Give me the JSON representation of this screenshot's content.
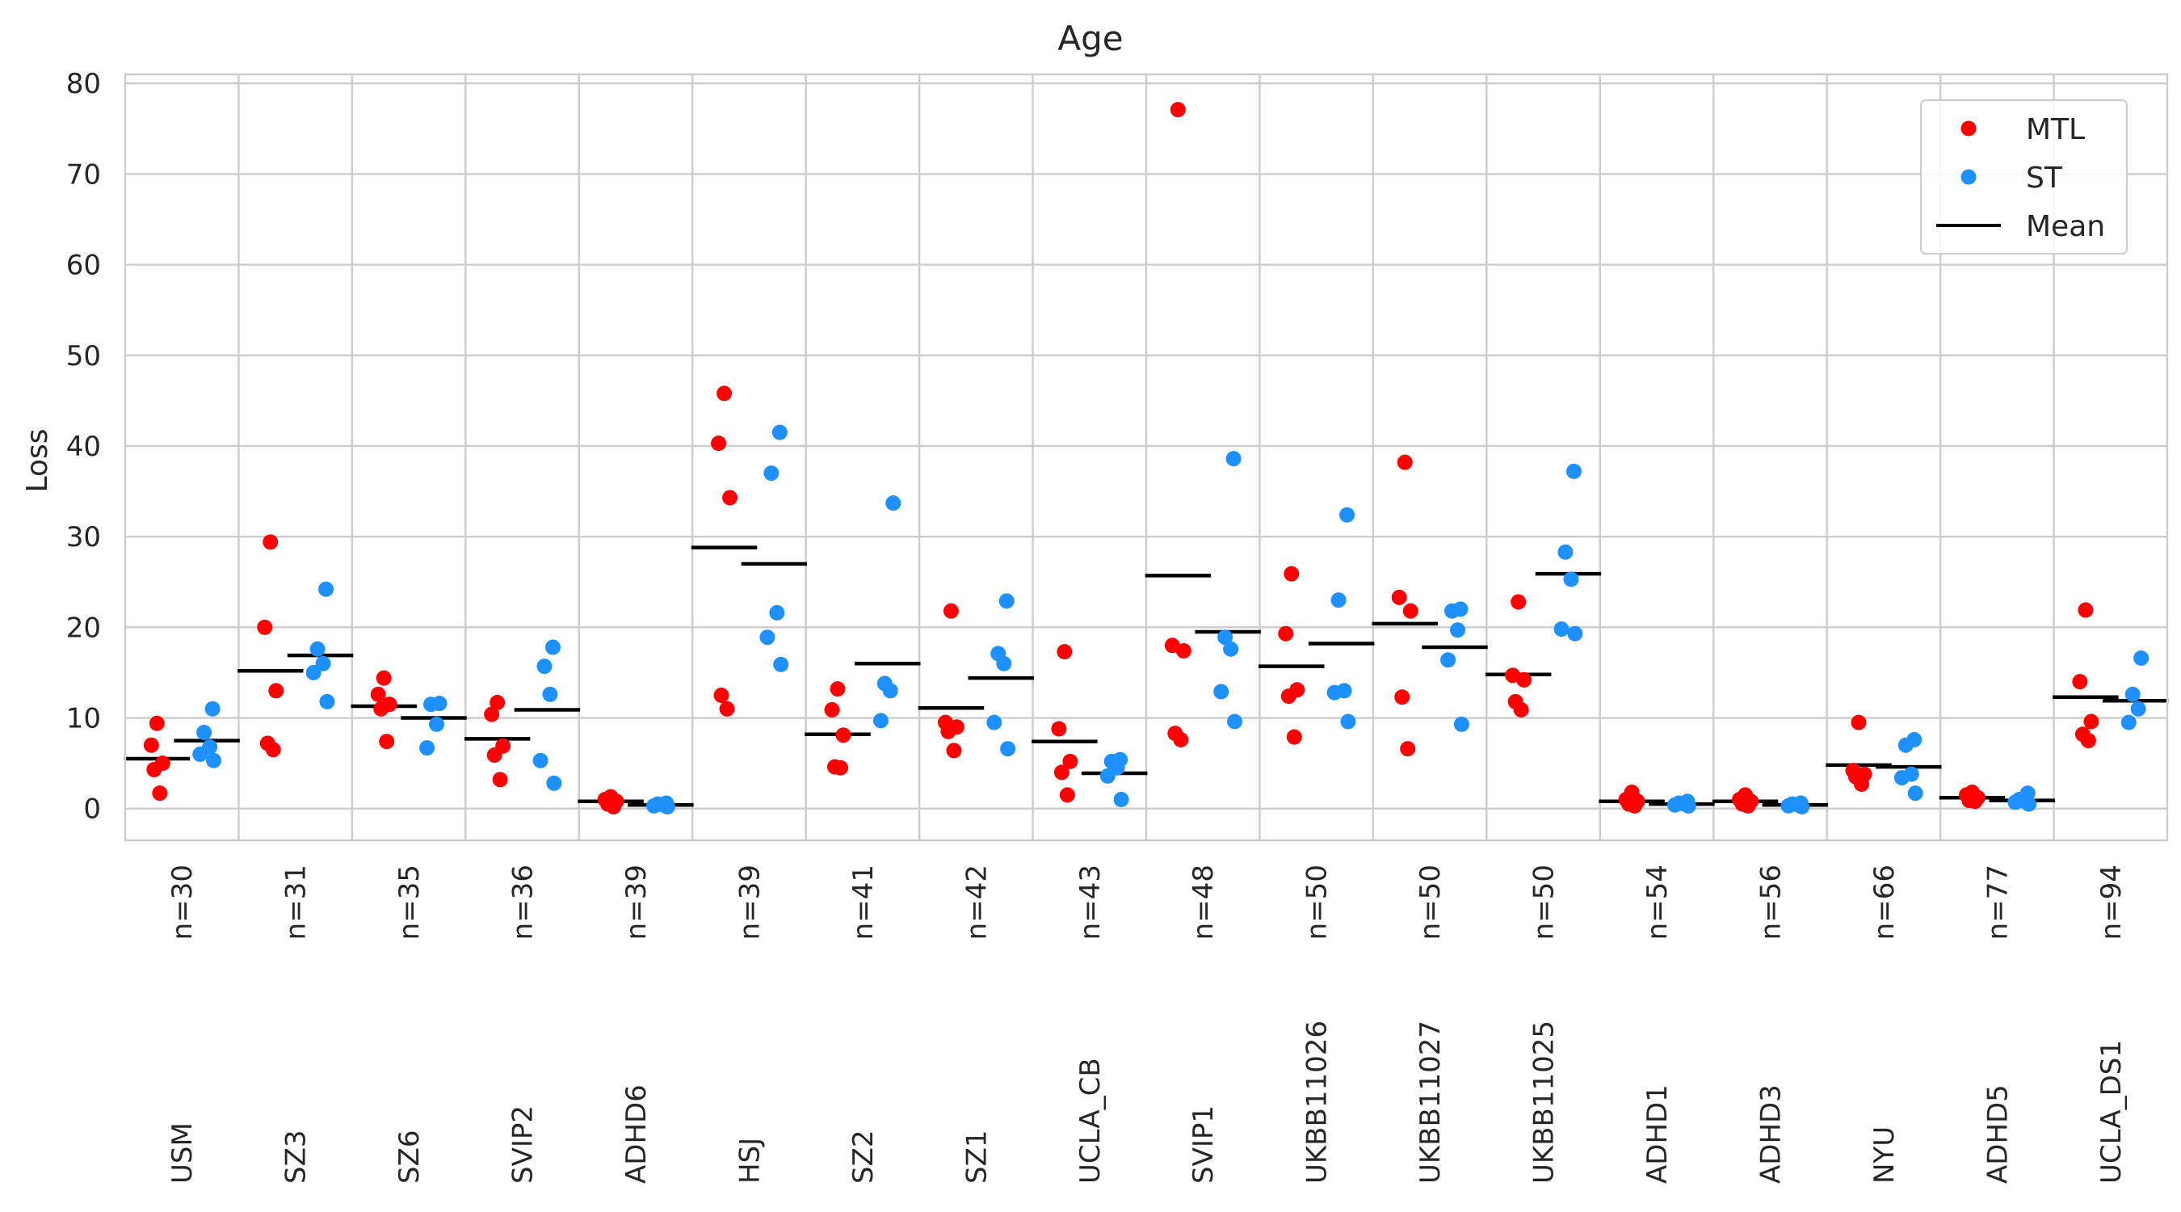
{
  "chart_data": {
    "type": "scatter",
    "title": "Age",
    "ylabel": "Loss",
    "xlabel": "",
    "ylim": [
      -3.5,
      81
    ],
    "yticks": [
      0,
      10,
      20,
      30,
      40,
      50,
      60,
      70,
      80
    ],
    "grid": true,
    "legend": {
      "placement": "top-right",
      "entries": [
        {
          "label": "MTL",
          "kind": "dot",
          "color": "#ff0000"
        },
        {
          "label": "ST",
          "kind": "dot",
          "color": "#1e90ff"
        },
        {
          "label": "Mean",
          "kind": "line",
          "color": "#000000"
        }
      ]
    },
    "colors": {
      "MTL": "#ff0000",
      "ST": "#1e90ff",
      "Mean": "#000000"
    },
    "categories": [
      {
        "name": "USM",
        "n_label": "n=30",
        "MTL": [
          9.4,
          7.0,
          5.0,
          4.3,
          1.7
        ],
        "MTL_mean": 5.5,
        "ST": [
          11.0,
          8.4,
          6.8,
          6.0,
          5.3
        ],
        "ST_mean": 7.5
      },
      {
        "name": "SZ3",
        "n_label": "n=31",
        "MTL": [
          29.4,
          20.0,
          13.0,
          7.2,
          6.5
        ],
        "MTL_mean": 15.2,
        "ST": [
          24.2,
          17.6,
          16.0,
          15.0,
          11.8
        ],
        "ST_mean": 16.9
      },
      {
        "name": "SZ6",
        "n_label": "n=35",
        "MTL": [
          14.4,
          12.6,
          11.5,
          11.0,
          7.4
        ],
        "MTL_mean": 11.3,
        "ST": [
          11.6,
          11.5,
          9.3,
          6.7
        ],
        "ST_mean": 10.0
      },
      {
        "name": "SVIP2",
        "n_label": "n=36",
        "MTL": [
          11.7,
          10.4,
          6.9,
          5.9,
          3.2
        ],
        "MTL_mean": 7.7,
        "ST": [
          17.8,
          15.7,
          12.6,
          5.3,
          2.8
        ],
        "ST_mean": 10.9
      },
      {
        "name": "ADHD6",
        "n_label": "n=39",
        "MTL": [
          1.3,
          1.0,
          0.8,
          0.5,
          0.2
        ],
        "MTL_mean": 0.8,
        "ST": [
          0.6,
          0.5,
          0.4,
          0.3,
          0.2
        ],
        "ST_mean": 0.4
      },
      {
        "name": "HSJ",
        "n_label": "n=39",
        "MTL": [
          45.8,
          40.3,
          34.3,
          12.5,
          11.0
        ],
        "MTL_mean": 28.8,
        "ST": [
          41.5,
          37.0,
          21.6,
          18.9,
          15.9
        ],
        "ST_mean": 27.0
      },
      {
        "name": "SZ2",
        "n_label": "n=41",
        "MTL": [
          13.2,
          10.9,
          8.1,
          4.6,
          4.5
        ],
        "MTL_mean": 8.2,
        "ST": [
          33.7,
          13.8,
          13.0,
          9.7
        ],
        "ST_mean": 16.0
      },
      {
        "name": "SZ1",
        "n_label": "n=42",
        "MTL": [
          21.8,
          9.5,
          9.0,
          8.5,
          6.4
        ],
        "MTL_mean": 11.1,
        "ST": [
          22.9,
          17.1,
          16.0,
          9.5,
          6.6
        ],
        "ST_mean": 14.4
      },
      {
        "name": "UCLA_CB",
        "n_label": "n=43",
        "MTL": [
          17.3,
          8.8,
          5.2,
          4.0,
          1.5
        ],
        "MTL_mean": 7.4,
        "ST": [
          5.4,
          5.2,
          4.5,
          3.6,
          1.0
        ],
        "ST_mean": 3.9
      },
      {
        "name": "SVIP1",
        "n_label": "n=48",
        "MTL": [
          77.1,
          18.0,
          17.4,
          8.3,
          7.6
        ],
        "MTL_mean": 25.7,
        "ST": [
          38.6,
          18.9,
          17.6,
          12.9,
          9.6
        ],
        "ST_mean": 19.5
      },
      {
        "name": "UKBB11026",
        "n_label": "n=50",
        "MTL": [
          25.9,
          19.3,
          13.1,
          12.4,
          7.9
        ],
        "MTL_mean": 15.7,
        "ST": [
          32.4,
          23.0,
          13.0,
          12.8,
          9.6
        ],
        "ST_mean": 18.2
      },
      {
        "name": "UKBB11027",
        "n_label": "n=50",
        "MTL": [
          38.2,
          23.3,
          21.8,
          12.3,
          6.6
        ],
        "MTL_mean": 20.4,
        "ST": [
          22.0,
          21.8,
          19.7,
          16.4,
          9.3
        ],
        "ST_mean": 17.8
      },
      {
        "name": "UKBB11025",
        "n_label": "n=50",
        "MTL": [
          22.8,
          14.7,
          14.2,
          11.8,
          10.9
        ],
        "MTL_mean": 14.8,
        "ST": [
          37.2,
          28.3,
          25.3,
          19.8,
          19.3
        ],
        "ST_mean": 25.9
      },
      {
        "name": "ADHD1",
        "n_label": "n=54",
        "MTL": [
          1.8,
          1.0,
          0.8,
          0.5,
          0.3
        ],
        "MTL_mean": 0.8,
        "ST": [
          0.8,
          0.6,
          0.5,
          0.4,
          0.3
        ],
        "ST_mean": 0.5
      },
      {
        "name": "ADHD3",
        "n_label": "n=56",
        "MTL": [
          1.5,
          1.0,
          0.8,
          0.5,
          0.3
        ],
        "MTL_mean": 0.8,
        "ST": [
          0.6,
          0.5,
          0.4,
          0.3,
          0.2
        ],
        "ST_mean": 0.4
      },
      {
        "name": "NYU",
        "n_label": "n=66",
        "MTL": [
          9.5,
          4.2,
          3.8,
          3.5,
          2.7
        ],
        "MTL_mean": 4.8,
        "ST": [
          7.6,
          7.0,
          3.8,
          3.4,
          1.7
        ],
        "ST_mean": 4.6
      },
      {
        "name": "ADHD5",
        "n_label": "n=77",
        "MTL": [
          1.8,
          1.5,
          1.2,
          0.9,
          0.8
        ],
        "MTL_mean": 1.2,
        "ST": [
          1.7,
          1.0,
          0.8,
          0.7,
          0.5
        ],
        "ST_mean": 0.9
      },
      {
        "name": "UCLA_DS1",
        "n_label": "n=94",
        "MTL": [
          21.9,
          14.0,
          9.6,
          8.2,
          7.5
        ],
        "MTL_mean": 12.3,
        "ST": [
          16.6,
          12.6,
          11.0,
          9.5
        ],
        "ST_mean": 11.9
      }
    ]
  }
}
